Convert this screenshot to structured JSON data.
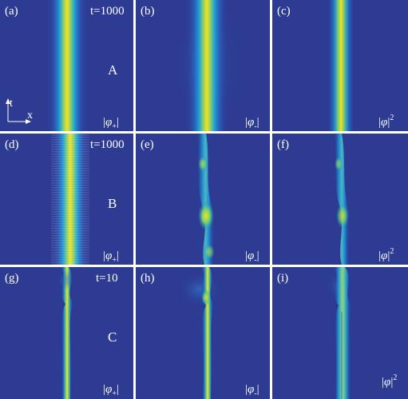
{
  "figure": {
    "rows": [
      {
        "case_label": "A",
        "time_label": "t=1000",
        "panels": [
          {
            "label": "(a)",
            "field": {
              "symbol": "φ",
              "sub": "+",
              "sup": ""
            }
          },
          {
            "label": "(b)",
            "field": {
              "symbol": "φ",
              "sub": "-",
              "sup": ""
            }
          },
          {
            "label": "(c)",
            "field": {
              "symbol": "φ",
              "sub": "",
              "sup": "2"
            }
          }
        ]
      },
      {
        "case_label": "B",
        "time_label": "t=1000",
        "panels": [
          {
            "label": "(d)",
            "field": {
              "symbol": "φ",
              "sub": "+",
              "sup": ""
            }
          },
          {
            "label": "(e)",
            "field": {
              "symbol": "φ",
              "sub": "-",
              "sup": ""
            }
          },
          {
            "label": "(f)",
            "field": {
              "symbol": "φ",
              "sub": "",
              "sup": "2"
            }
          }
        ]
      },
      {
        "case_label": "C",
        "time_label": "t=10",
        "panels": [
          {
            "label": "(g)",
            "field": {
              "symbol": "φ",
              "sub": "+",
              "sup": ""
            }
          },
          {
            "label": "(h)",
            "field": {
              "symbol": "φ",
              "sub": "-",
              "sup": ""
            }
          },
          {
            "label": "(i)",
            "field": {
              "symbol": "φ",
              "sub": "",
              "sup": "2"
            }
          }
        ]
      }
    ],
    "axes": {
      "t_label": "t",
      "x_label": "x"
    },
    "colors": {
      "background": "#2d3b93",
      "mid": "#1ea0d8",
      "peak": "#f5e11e",
      "panel_gap": "#ffffff"
    }
  }
}
